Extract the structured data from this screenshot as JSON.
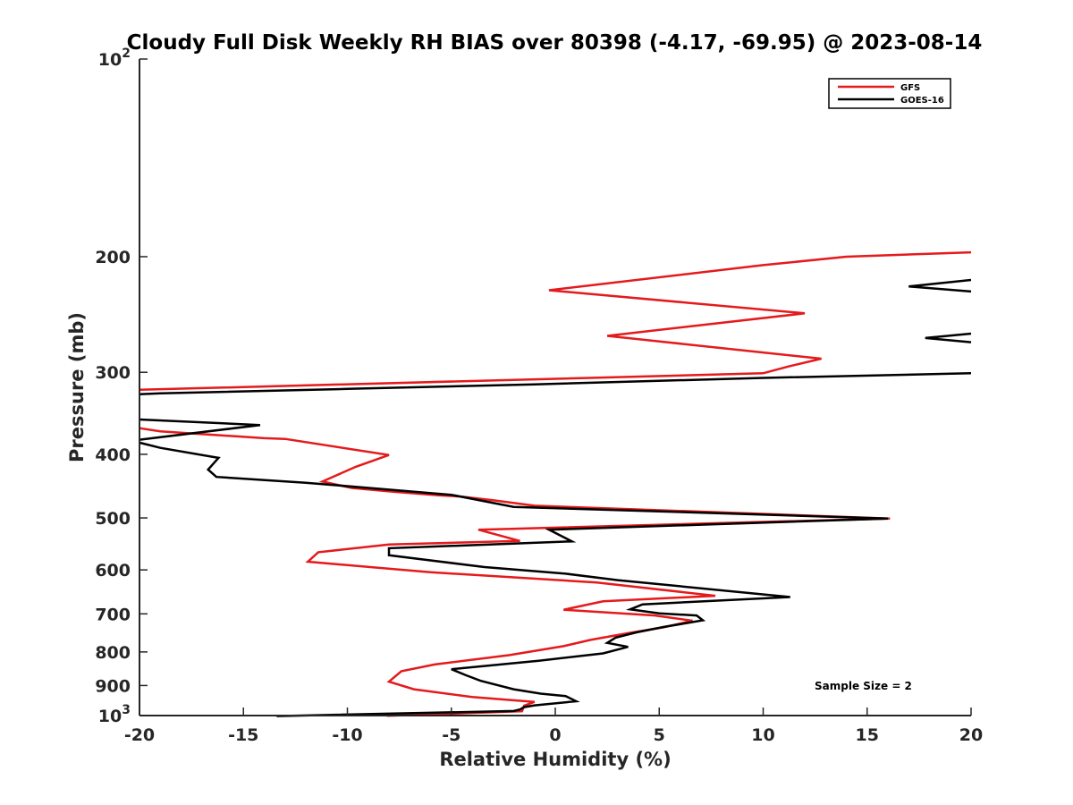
{
  "chart_data": {
    "type": "line",
    "title": "Cloudy Full Disk Weekly RH BIAS over 80398 (-4.17, -69.95) @ 2023-08-14",
    "xlabel": "Relative Humidity (%)",
    "ylabel": "Pressure (mb)",
    "xlim": [
      -20,
      20
    ],
    "ylim": [
      100,
      1000
    ],
    "y_scale": "log",
    "y_reversed": true,
    "x_ticks": [
      "-20",
      "-15",
      "-10",
      "-5",
      "0",
      "5",
      "10",
      "15",
      "20"
    ],
    "y_ticks": [
      {
        "value": 100,
        "base": "10",
        "exp": "2"
      },
      {
        "value": 200,
        "label": "200"
      },
      {
        "value": 300,
        "label": "300"
      },
      {
        "value": 400,
        "label": "400"
      },
      {
        "value": 500,
        "label": "500"
      },
      {
        "value": 600,
        "label": "600"
      },
      {
        "value": 700,
        "label": "700"
      },
      {
        "value": 800,
        "label": "800"
      },
      {
        "value": 900,
        "label": "900"
      },
      {
        "value": 1000,
        "base": "10",
        "exp": "3"
      }
    ],
    "legend_position": "top-right",
    "annotation": "Sample Size = 2",
    "series": [
      {
        "name": "GFS",
        "color": "#e41a1c",
        "segments": [
          [
            [
              20.0,
              197
            ],
            [
              14.0,
              200
            ],
            [
              10.0,
              206
            ],
            [
              -0.3,
              225
            ],
            [
              12.0,
              244
            ],
            [
              2.5,
              264
            ],
            [
              12.8,
              286
            ],
            [
              11.2,
              294
            ],
            [
              10.0,
              301
            ],
            [
              -20.0,
              319
            ]
          ],
          [
            [
              -20.0,
              365
            ],
            [
              -19.0,
              369
            ],
            [
              -14.0,
              378
            ],
            [
              -13.0,
              379
            ],
            [
              -8.0,
              401
            ],
            [
              -9.6,
              418
            ],
            [
              -11.2,
              440
            ],
            [
              -9.8,
              450
            ],
            [
              -7.8,
              456
            ],
            [
              -5.6,
              462
            ],
            [
              -4.5,
              464
            ],
            [
              -3.0,
              470
            ],
            [
              -1.0,
              479
            ],
            [
              16.1,
              501
            ],
            [
              -3.7,
              521
            ],
            [
              -1.7,
              542
            ],
            [
              -8.0,
              549
            ],
            [
              -11.4,
              564
            ],
            [
              -11.9,
              583
            ],
            [
              -6.0,
              605
            ],
            [
              2.0,
              627
            ],
            [
              7.7,
              657
            ],
            [
              2.3,
              670
            ],
            [
              0.4,
              690
            ],
            [
              4.8,
              704
            ],
            [
              6.6,
              717
            ],
            [
              5.2,
              734
            ],
            [
              3.5,
              749
            ],
            [
              1.7,
              767
            ],
            [
              0.4,
              784
            ],
            [
              -2.2,
              809
            ],
            [
              -5.8,
              836
            ],
            [
              -7.4,
              856
            ],
            [
              -8.0,
              888
            ],
            [
              -6.8,
              912
            ],
            [
              -4.0,
              937
            ],
            [
              -1.0,
              953
            ],
            [
              -1.5,
              966
            ],
            [
              -1.6,
              985
            ],
            [
              -8.1,
              1001
            ]
          ]
        ]
      },
      {
        "name": "GOES-16",
        "color": "#000000",
        "segments": [
          [
            [
              20.0,
              217
            ],
            [
              17.0,
              222
            ],
            [
              20.0,
              226
            ]
          ],
          [
            [
              20.0,
              262
            ],
            [
              17.8,
              266
            ],
            [
              20.0,
              270
            ]
          ],
          [
            [
              20.0,
              301
            ],
            [
              10.0,
              306
            ],
            [
              -1.0,
              313
            ],
            [
              -10.0,
              318
            ],
            [
              -19.0,
              323
            ],
            [
              -20.0,
              324
            ]
          ],
          [
            [
              -20.0,
              354
            ],
            [
              -14.2,
              361
            ],
            [
              -20.0,
              380
            ]
          ],
          [
            [
              -20.0,
              384
            ],
            [
              -19.0,
              391
            ],
            [
              -16.2,
              405
            ],
            [
              -16.7,
              422
            ],
            [
              -16.3,
              433
            ],
            [
              -12.0,
              442
            ],
            [
              -5.0,
              461
            ],
            [
              -2.0,
              481
            ],
            [
              16.0,
              501
            ],
            [
              -0.3,
              521
            ],
            [
              0.8,
              543
            ],
            [
              -8.0,
              556
            ],
            [
              -8.0,
              570
            ],
            [
              -3.4,
              594
            ],
            [
              0.5,
              608
            ],
            [
              3.0,
              622
            ],
            [
              11.3,
              660
            ],
            [
              4.2,
              677
            ],
            [
              3.6,
              689
            ],
            [
              5.0,
              699
            ],
            [
              6.8,
              704
            ],
            [
              7.1,
              716
            ],
            [
              5.2,
              733
            ],
            [
              3.9,
              747
            ],
            [
              2.9,
              761
            ],
            [
              2.5,
              775
            ],
            [
              3.5,
              786
            ],
            [
              2.3,
              804
            ],
            [
              -0.8,
              825
            ],
            [
              -5.0,
              850
            ],
            [
              -4.3,
              868
            ],
            [
              -3.6,
              885
            ],
            [
              -2.0,
              912
            ],
            [
              -0.7,
              926
            ],
            [
              0.5,
              934
            ],
            [
              1.0,
              951
            ],
            [
              -1.0,
              965
            ],
            [
              -1.5,
              971
            ],
            [
              -1.7,
              979
            ],
            [
              -2.0,
              984
            ],
            [
              -13.4,
              1002
            ]
          ]
        ]
      }
    ]
  }
}
